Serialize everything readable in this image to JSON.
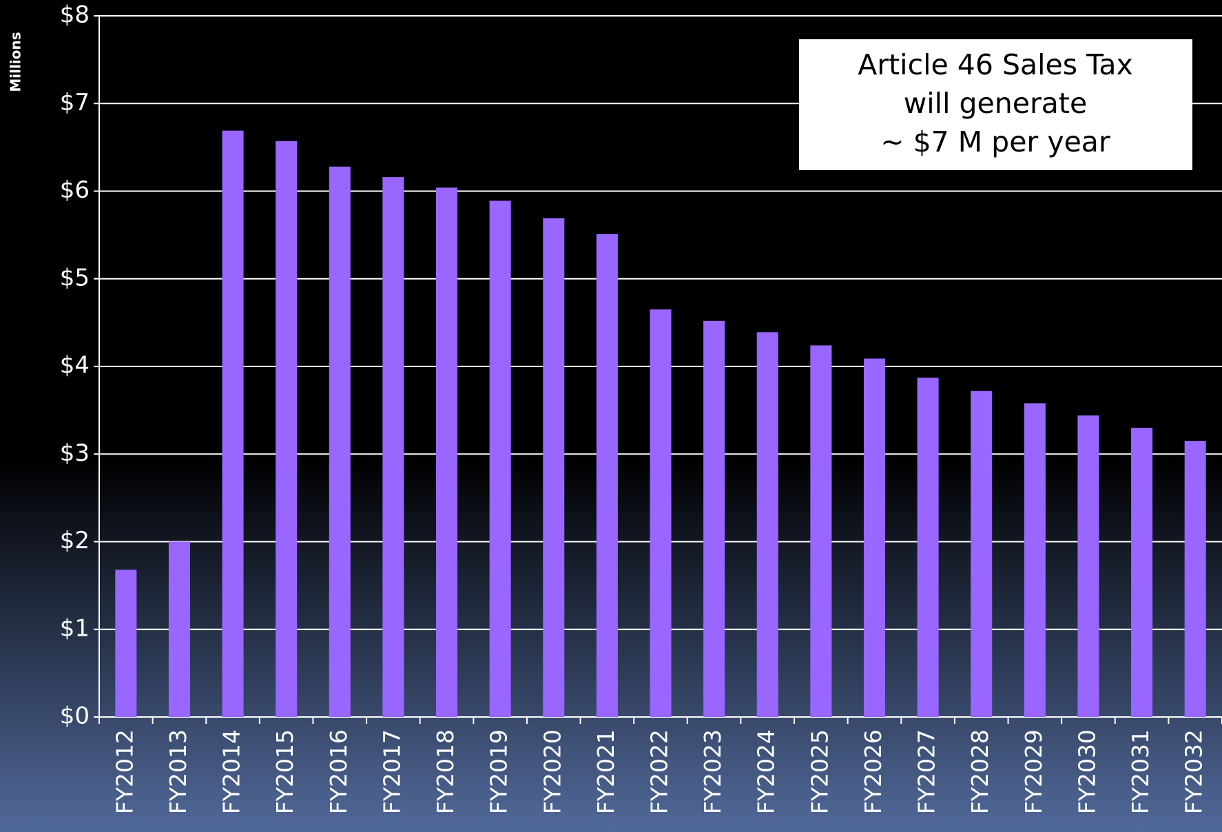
{
  "chart_data": {
    "type": "bar",
    "y_axis_label": "Millions",
    "annotation": [
      "Article 46 Sales Tax",
      "will generate",
      "~ $7 M per year"
    ],
    "categories": [
      "FY2012",
      "FY2013",
      "FY2014",
      "FY2015",
      "FY2016",
      "FY2017",
      "FY2018",
      "FY2019",
      "FY2020",
      "FY2021",
      "FY2022",
      "FY2023",
      "FY2024",
      "FY2025",
      "FY2026",
      "FY2027",
      "FY2028",
      "FY2029",
      "FY2030",
      "FY2031",
      "FY2032"
    ],
    "values": [
      1.68,
      2.0,
      6.69,
      6.57,
      6.28,
      6.16,
      6.04,
      5.89,
      5.69,
      5.51,
      4.65,
      4.52,
      4.39,
      4.24,
      4.09,
      3.87,
      3.72,
      3.58,
      3.44,
      3.3,
      3.15
    ],
    "color": "#9966ff",
    "ylim": [
      0,
      8
    ],
    "yticks": [
      {
        "value": 0,
        "label": "$0"
      },
      {
        "value": 1,
        "label": "$1"
      },
      {
        "value": 2,
        "label": "$2"
      },
      {
        "value": 3,
        "label": "$3"
      },
      {
        "value": 4,
        "label": "$4"
      },
      {
        "value": 5,
        "label": "$5"
      },
      {
        "value": 6,
        "label": "$6"
      },
      {
        "value": 7,
        "label": "$7"
      },
      {
        "value": 8,
        "label": "$8"
      }
    ],
    "grid": true
  }
}
